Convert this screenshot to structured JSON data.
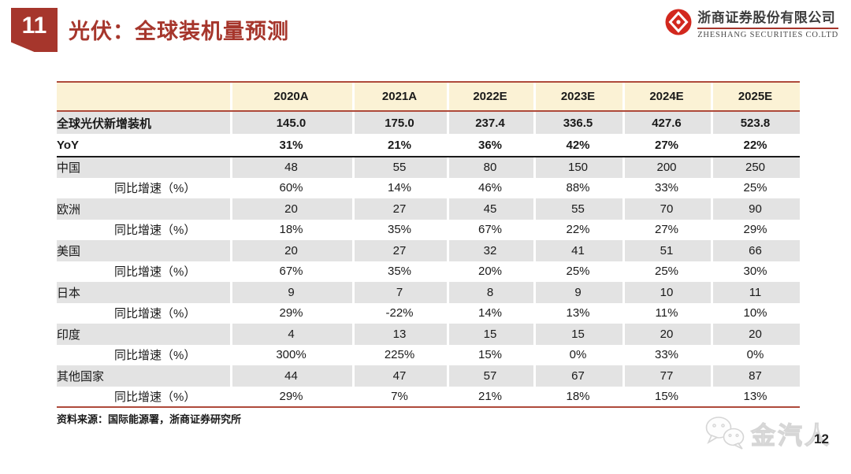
{
  "header": {
    "badge": "11",
    "title": "光伏：全球装机量预测"
  },
  "logo": {
    "company_cn": "浙商证券股份有限公司",
    "company_en": "ZHESHANG SECURITIES CO.LTD"
  },
  "table": {
    "columns": [
      "",
      "2020A",
      "2021A",
      "2022E",
      "2023E",
      "2024E",
      "2025E"
    ],
    "rows": [
      {
        "label": "全球光伏新增装机",
        "variant": "metric",
        "values": [
          "145.0",
          "175.0",
          "237.4",
          "336.5",
          "427.6",
          "523.8"
        ]
      },
      {
        "label": "YoY",
        "variant": "yoy",
        "values": [
          "31%",
          "21%",
          "36%",
          "42%",
          "27%",
          "22%"
        ]
      },
      {
        "label": "中国",
        "variant": "country",
        "values": [
          "48",
          "55",
          "80",
          "150",
          "200",
          "250"
        ]
      },
      {
        "label": "同比增速（%）",
        "variant": "growth",
        "values": [
          "60%",
          "14%",
          "46%",
          "88%",
          "33%",
          "25%"
        ]
      },
      {
        "label": "欧洲",
        "variant": "country",
        "values": [
          "20",
          "27",
          "45",
          "55",
          "70",
          "90"
        ]
      },
      {
        "label": "同比增速（%）",
        "variant": "growth",
        "values": [
          "18%",
          "35%",
          "67%",
          "22%",
          "27%",
          "29%"
        ]
      },
      {
        "label": "美国",
        "variant": "country",
        "values": [
          "20",
          "27",
          "32",
          "41",
          "51",
          "66"
        ]
      },
      {
        "label": "同比增速（%）",
        "variant": "growth",
        "values": [
          "67%",
          "35%",
          "20%",
          "25%",
          "25%",
          "30%"
        ]
      },
      {
        "label": "日本",
        "variant": "country",
        "values": [
          "9",
          "7",
          "8",
          "9",
          "10",
          "11"
        ]
      },
      {
        "label": "同比增速（%）",
        "variant": "growth",
        "values": [
          "29%",
          "-22%",
          "14%",
          "13%",
          "11%",
          "10%"
        ]
      },
      {
        "label": "印度",
        "variant": "country",
        "values": [
          "4",
          "13",
          "15",
          "15",
          "20",
          "20"
        ]
      },
      {
        "label": "同比增速（%）",
        "variant": "growth",
        "values": [
          "300%",
          "225%",
          "15%",
          "0%",
          "33%",
          "0%"
        ]
      },
      {
        "label": "其他国家",
        "variant": "country",
        "values": [
          "44",
          "47",
          "57",
          "67",
          "77",
          "87"
        ]
      },
      {
        "label": "同比增速（%）",
        "variant": "growth",
        "values": [
          "29%",
          "7%",
          "21%",
          "18%",
          "15%",
          "13%"
        ]
      }
    ]
  },
  "footer": {
    "source_note": "资料来源：国际能源署，浙商证券研究所",
    "watermark": "金汽人",
    "page_number": "12"
  },
  "colors": {
    "accent_red": "#A6362C",
    "line_red": "#AE4A3B",
    "header_bg": "#FBF2D5",
    "row_gray": "#E3E3E3",
    "logo_red": "#D2281E"
  }
}
